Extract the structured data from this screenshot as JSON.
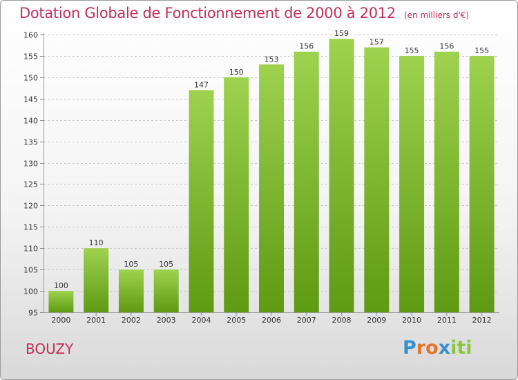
{
  "header": {
    "title": "Dotation Globale de Fonctionnement de 2000 à 2012",
    "unit": "(en milliers d'€)"
  },
  "footer": {
    "commune": "BOUZY",
    "brand": "Proxiti",
    "brand_letters": [
      {
        "ch": "P",
        "color": "#3a8fd0"
      },
      {
        "ch": "r",
        "color": "#e8722a"
      },
      {
        "ch": "o",
        "color": "#e8722a"
      },
      {
        "ch": "x",
        "color": "#3a8fd0"
      },
      {
        "ch": "i",
        "color": "#8cc63f"
      },
      {
        "ch": "t",
        "color": "#8cc63f"
      },
      {
        "ch": "i",
        "color": "#8cc63f"
      }
    ]
  },
  "colors": {
    "title": "#c0305a",
    "bar_top": "#9ed24f",
    "bar_bottom": "#5e9a12",
    "grid": "#c8c8c8"
  },
  "chart_data": {
    "type": "bar",
    "title": "Dotation Globale de Fonctionnement de 2000 à 2012",
    "subtitle": "(en milliers d'€)",
    "categories": [
      "2000",
      "2001",
      "2002",
      "2003",
      "2004",
      "2005",
      "2006",
      "2007",
      "2008",
      "2009",
      "2010",
      "2011",
      "2012"
    ],
    "values": [
      100,
      110,
      105,
      105,
      147,
      150,
      153,
      156,
      159,
      157,
      155,
      156,
      155
    ],
    "ylim": [
      95,
      160
    ],
    "yticks": [
      95,
      100,
      105,
      110,
      115,
      120,
      125,
      130,
      135,
      140,
      145,
      150,
      155,
      160
    ],
    "grid": "horizontal dashed",
    "legend": "none"
  }
}
